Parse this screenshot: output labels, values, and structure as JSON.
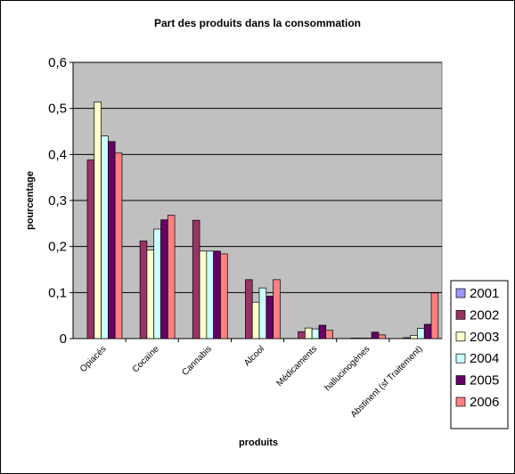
{
  "chart_data": {
    "type": "bar",
    "title": "Part des produits dans la consommation",
    "xlabel": "produits",
    "ylabel": "pourcentage",
    "ylim": [
      0,
      0.6
    ],
    "yticks": [
      "0",
      "0,1",
      "0,2",
      "0,3",
      "0,4",
      "0,5",
      "0,6"
    ],
    "grid": true,
    "legend_position": "right",
    "categories": [
      "Opiacés",
      "Cocaïne",
      "Cannabis",
      "Alcool",
      "Médicaments",
      "hallucinogènes",
      "Abstinent (sf Traitement)"
    ],
    "series": [
      {
        "name": "2001",
        "color": "#9999FF",
        "values": [
          0,
          0,
          0,
          0,
          0,
          0,
          0
        ]
      },
      {
        "name": "2002",
        "color": "#993366",
        "values": [
          0.388,
          0.212,
          0.257,
          0.128,
          0.015,
          0.001,
          0.002
        ]
      },
      {
        "name": "2003",
        "color": "#FFFFCC",
        "values": [
          0.514,
          0.192,
          0.19,
          0.079,
          0.023,
          0.001,
          0.007
        ]
      },
      {
        "name": "2004",
        "color": "#CCFFFF",
        "values": [
          0.44,
          0.238,
          0.19,
          0.11,
          0.021,
          0.001,
          0.022
        ]
      },
      {
        "name": "2005",
        "color": "#660066",
        "values": [
          0.428,
          0.258,
          0.19,
          0.092,
          0.029,
          0.014,
          0.031
        ]
      },
      {
        "name": "2006",
        "color": "#FF8080",
        "values": [
          0.403,
          0.268,
          0.184,
          0.128,
          0.018,
          0.008,
          0.099
        ]
      }
    ]
  }
}
